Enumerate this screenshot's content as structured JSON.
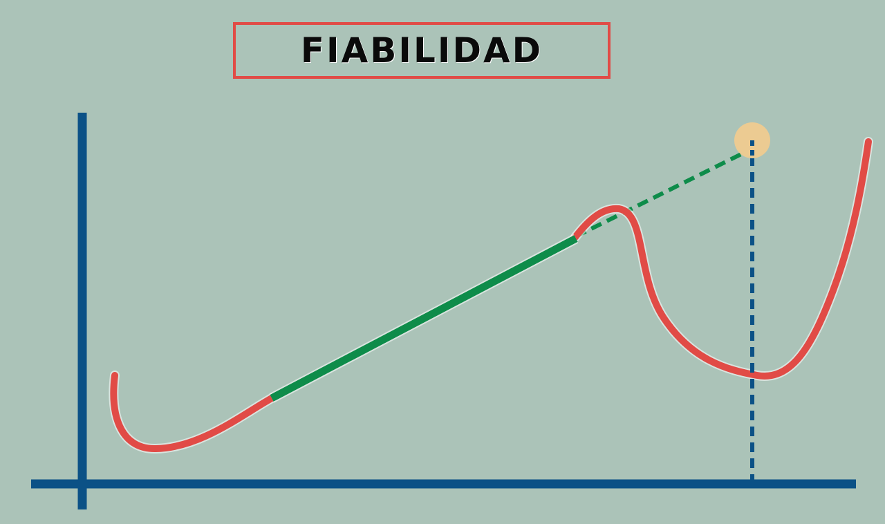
{
  "title": "FIABILIDAD",
  "colors": {
    "background": "#abc3b8",
    "axis": "#0b5186",
    "curve_red": "#e14b46",
    "curve_green": "#0e8c4a",
    "highlight_point": "#eccb92",
    "title_border": "#e14b46"
  }
}
